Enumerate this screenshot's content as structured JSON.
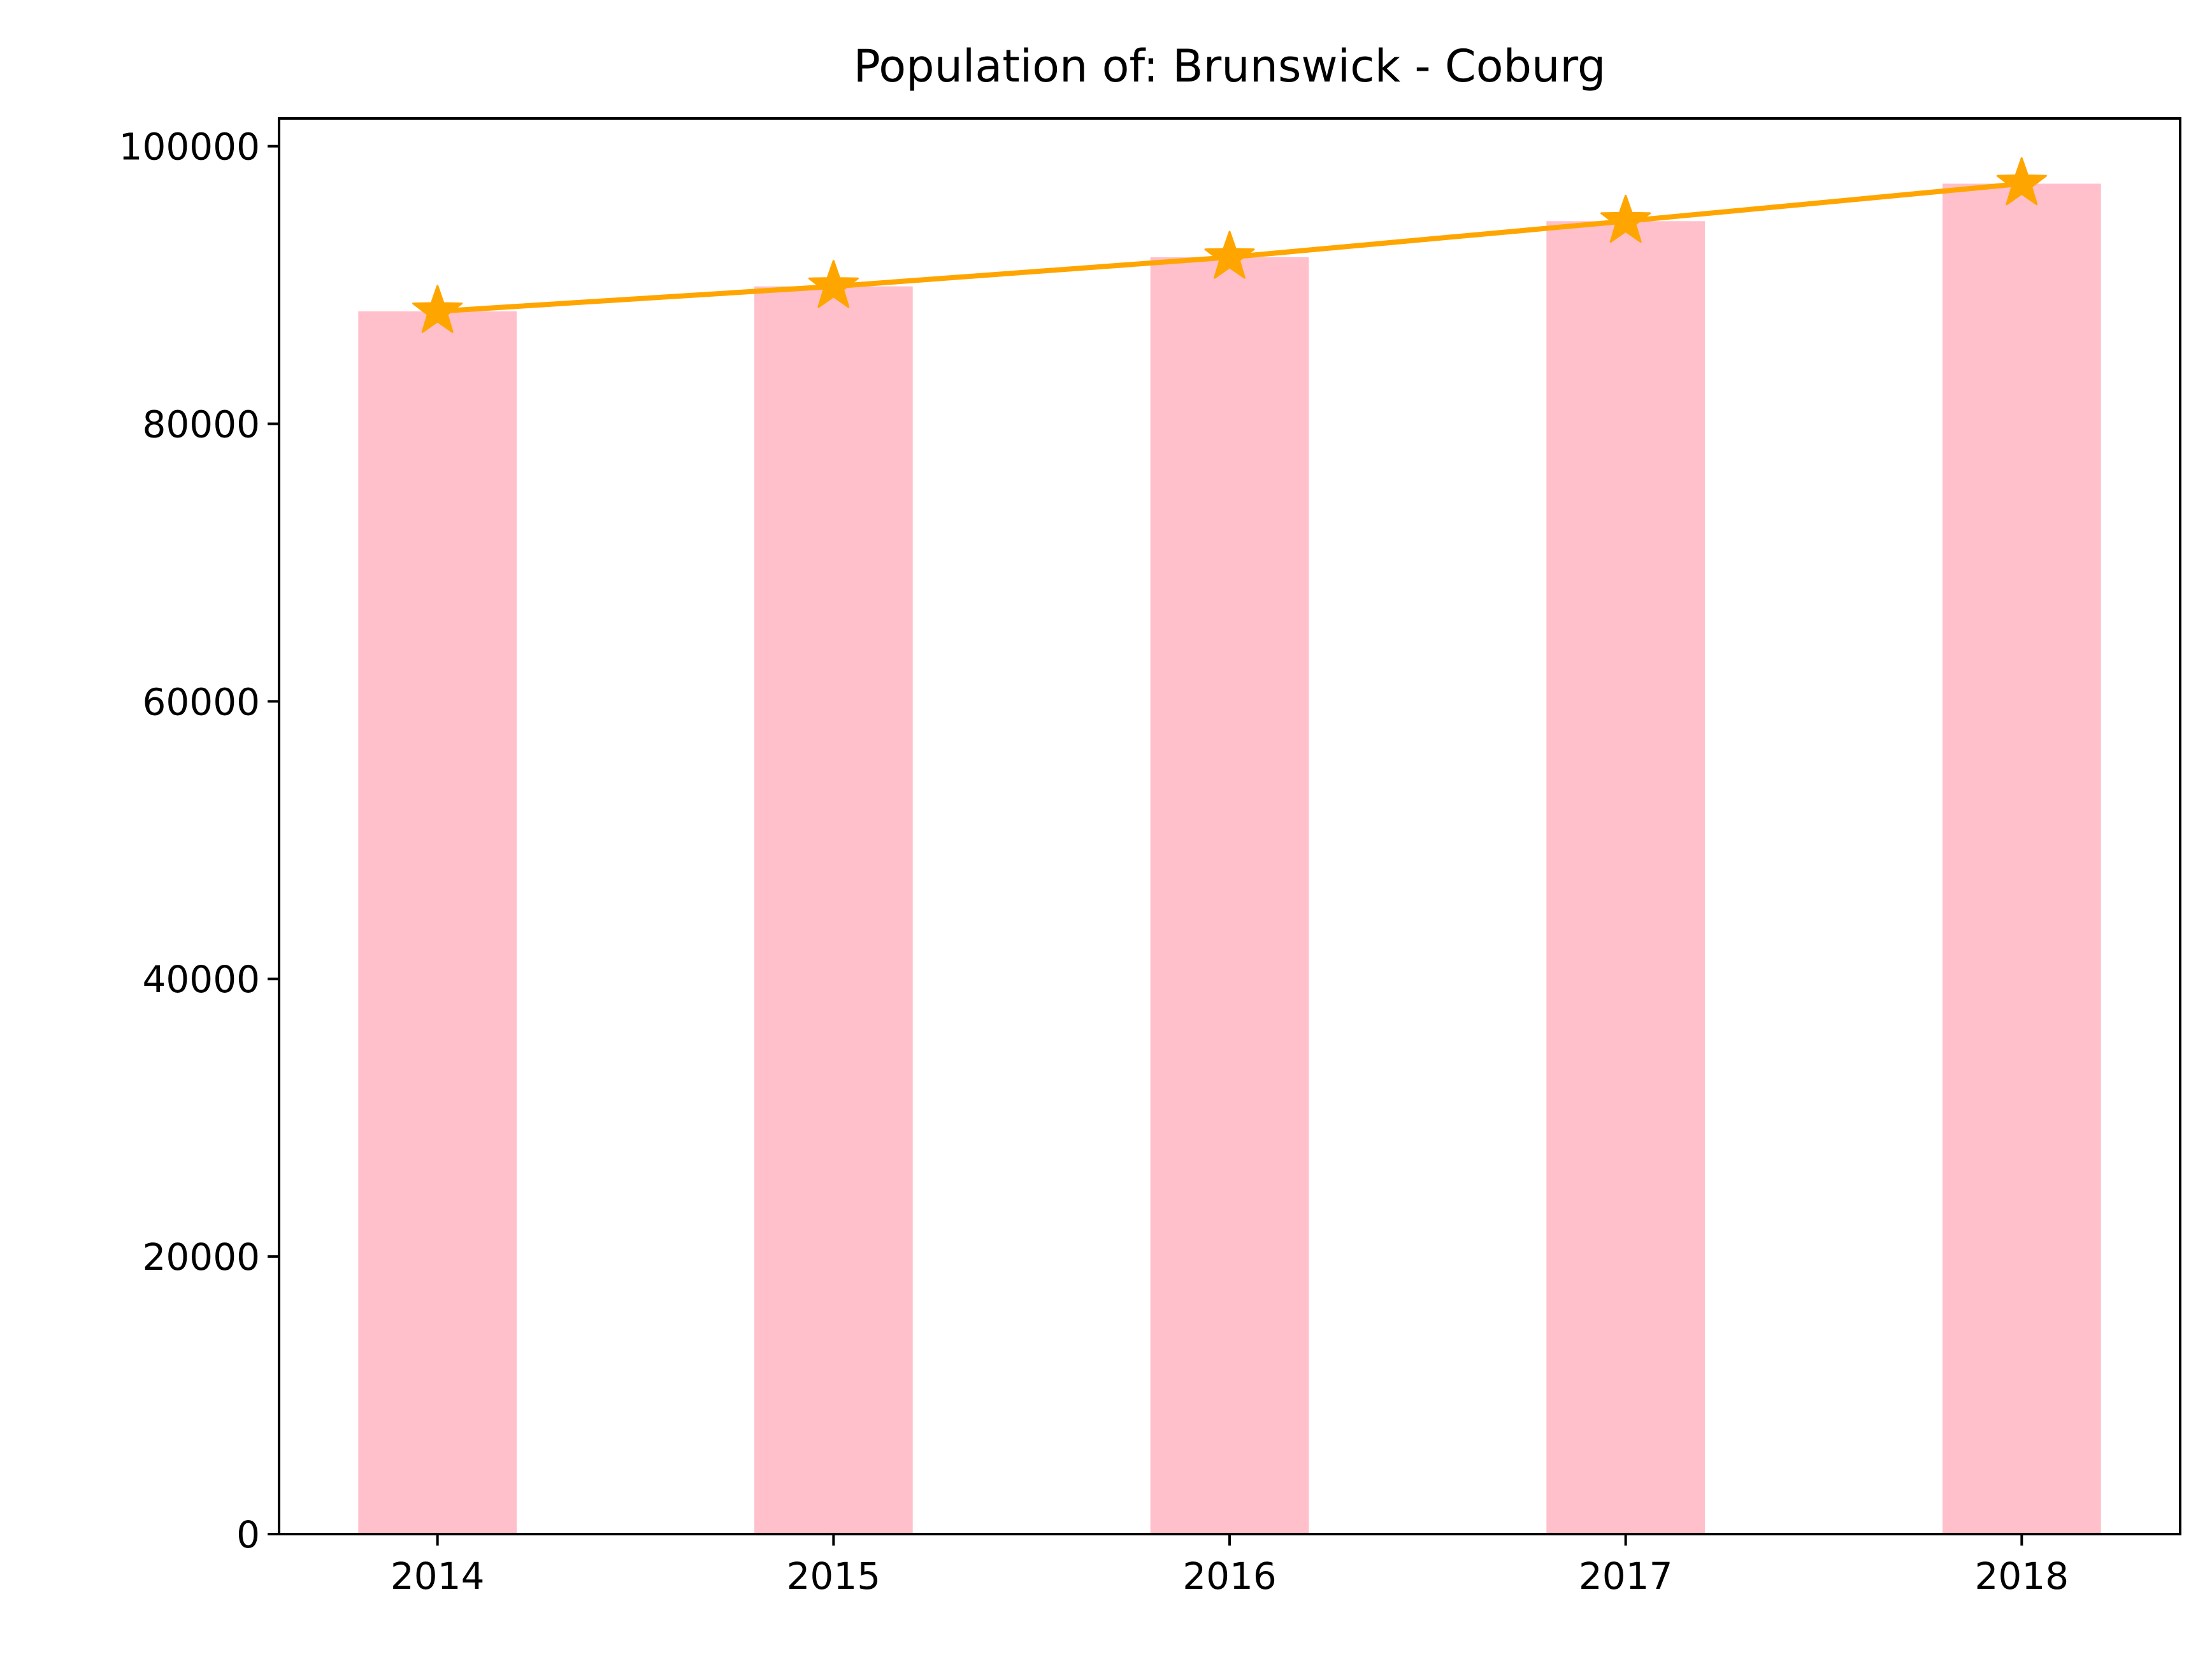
{
  "chart_data": {
    "type": "bar",
    "title": "Population of: Brunswick - Coburg",
    "xlabel": "",
    "ylabel": "",
    "categories": [
      "2014",
      "2015",
      "2016",
      "2017",
      "2018"
    ],
    "ylim": [
      0,
      102000
    ],
    "yticks": [
      0,
      20000,
      40000,
      60000,
      80000,
      100000
    ],
    "ytick_labels": [
      "0",
      "20000",
      "40000",
      "60000",
      "80000",
      "100000"
    ],
    "grid": false,
    "legend": "none",
    "series": [
      {
        "kind": "bar",
        "color": "#ffc0cb",
        "values": [
          88100,
          89900,
          92000,
          94600,
          97300
        ]
      },
      {
        "kind": "line",
        "marker": "star",
        "color": "#ffa500",
        "values": [
          88100,
          89900,
          92000,
          94600,
          97300
        ]
      }
    ]
  }
}
